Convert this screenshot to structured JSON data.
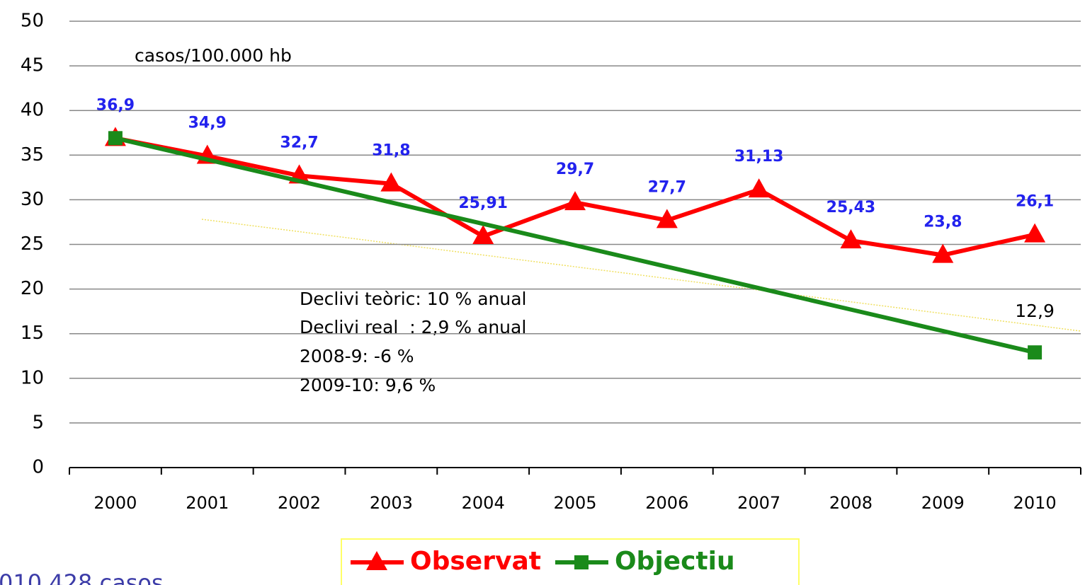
{
  "chart_data": {
    "type": "line",
    "annotations": [
      "casos/100.000 hb",
      "Declivi teòric: 10 % anual",
      "Declivi real  : 2,9 % anual",
      "2008-9: -6 %",
      "2009-10: 9,6 %",
      "010 428 casos"
    ],
    "categories": [
      "2000",
      "2001",
      "2002",
      "2003",
      "2004",
      "2005",
      "2006",
      "2007",
      "2008",
      "2009",
      "2010"
    ],
    "series": [
      {
        "name": "Observat",
        "color": "#ff0000",
        "marker": "triangle",
        "values": [
          36.9,
          34.9,
          32.7,
          31.8,
          25.91,
          29.7,
          27.7,
          31.13,
          25.43,
          23.8,
          26.1
        ],
        "value_labels": [
          "36,9",
          "34,9",
          "32,7",
          "31,8",
          "25,91",
          "29,7",
          "27,7",
          "31,13",
          "25,43",
          "23,8",
          "26,1"
        ]
      },
      {
        "name": "Objectiu",
        "color": "#1a8a1a",
        "marker": "square",
        "values": [
          36.9,
          34.5,
          32.1,
          29.7,
          27.3,
          24.9,
          22.5,
          20.1,
          17.7,
          15.3,
          12.9
        ],
        "value_labels": [
          null,
          null,
          null,
          null,
          null,
          null,
          null,
          null,
          null,
          null,
          "12,9"
        ]
      }
    ],
    "ylim": [
      0,
      50
    ],
    "yticks": [
      0,
      5,
      10,
      15,
      20,
      25,
      30,
      35,
      40,
      45,
      50
    ],
    "grid": true
  }
}
